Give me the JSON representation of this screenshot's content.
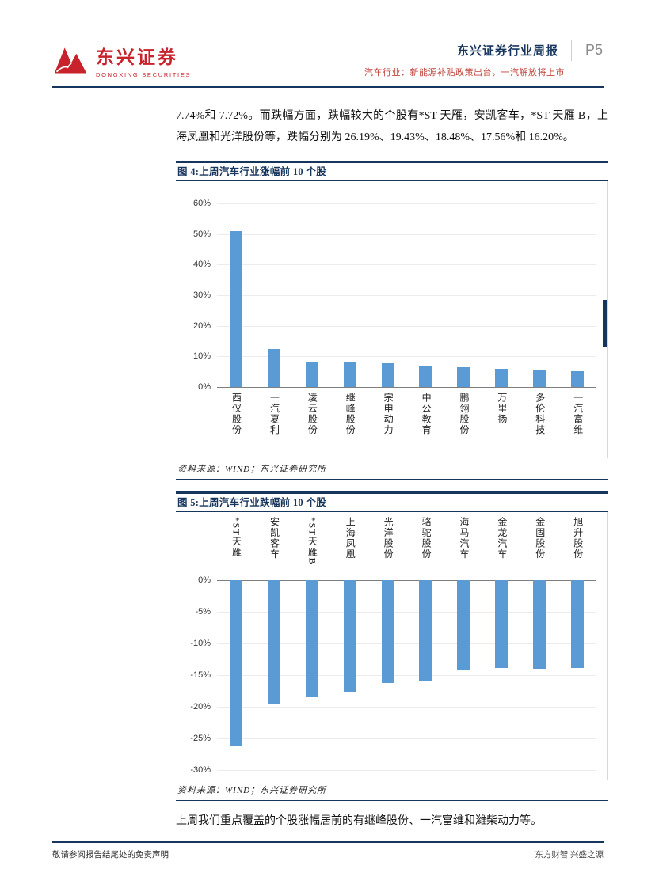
{
  "colors": {
    "navy": "#17365D",
    "red": "#C8232C",
    "subtitle_red": "#C0443C",
    "bar_blue": "#5B9BD5",
    "page_gray": "#8A8A8A"
  },
  "header": {
    "logo_cn": "东兴证券",
    "logo_en": "DONGXING SECURITIES",
    "report_title": "东兴证券行业周报",
    "page_number": "P5",
    "subtitle": "汽车行业：新能源补贴政策出台，一汽解放将上市"
  },
  "body": {
    "paragraph": "7.74%和 7.72%。而跌幅方面，跌幅较大的个股有*ST 天雁，安凯客车，*ST 天雁 B，上海凤凰和光洋股份等，跌幅分别为 26.19%、19.43%、18.48%、17.56%和 16.20%。",
    "closing": "上周我们重点覆盖的个股涨幅居前的有继峰股份、一汽富维和潍柴动力等。"
  },
  "figures": [
    {
      "title": "图 4:上周汽车行业涨幅前 10 个股",
      "source": "资料来源：WIND；东兴证券研究所"
    },
    {
      "title": "图 5:上周汽车行业跌幅前 10 个股",
      "source": "资料来源：WIND；东兴证券研究所"
    }
  ],
  "chart_data": [
    {
      "type": "bar",
      "title": "上周汽车行业涨幅前10个股",
      "categories": [
        "西仪股份",
        "一汽夏利",
        "凌云股份",
        "继峰股份",
        "宗申动力",
        "中公教育",
        "鹏翎股份",
        "万里扬",
        "多伦科技",
        "一汽富维"
      ],
      "values": [
        50.9,
        12.4,
        8.1,
        7.9,
        7.8,
        7.0,
        6.5,
        5.8,
        5.5,
        5.2
      ],
      "unit": "%",
      "ylim": [
        0,
        60
      ],
      "yticks": [
        60,
        50,
        40,
        30,
        20,
        10,
        0
      ],
      "bar_color": "#5B9BD5",
      "legend": "none",
      "grid": "light"
    },
    {
      "type": "bar",
      "title": "上周汽车行业跌幅前10个股",
      "categories": [
        "*ST天雁",
        "安凯客车",
        "*ST天雁B",
        "上海凤凰",
        "光洋股份",
        "骆驼股份",
        "海马汽车",
        "金龙汽车",
        "金固股份",
        "旭升股份"
      ],
      "values": [
        -26.19,
        -19.43,
        -18.48,
        -17.56,
        -16.2,
        -16.0,
        -14.1,
        -13.9,
        -14.0,
        -13.9
      ],
      "unit": "%",
      "ylim": [
        -30,
        0
      ],
      "yticks": [
        0,
        -5,
        -10,
        -15,
        -20,
        -25,
        -30
      ],
      "bar_color": "#5B9BD5",
      "legend": "none",
      "grid": "light"
    }
  ],
  "footer": {
    "disclaimer": "敬请参阅报告结尾处的免责声明",
    "slogan": "东方财智 兴盛之源"
  }
}
